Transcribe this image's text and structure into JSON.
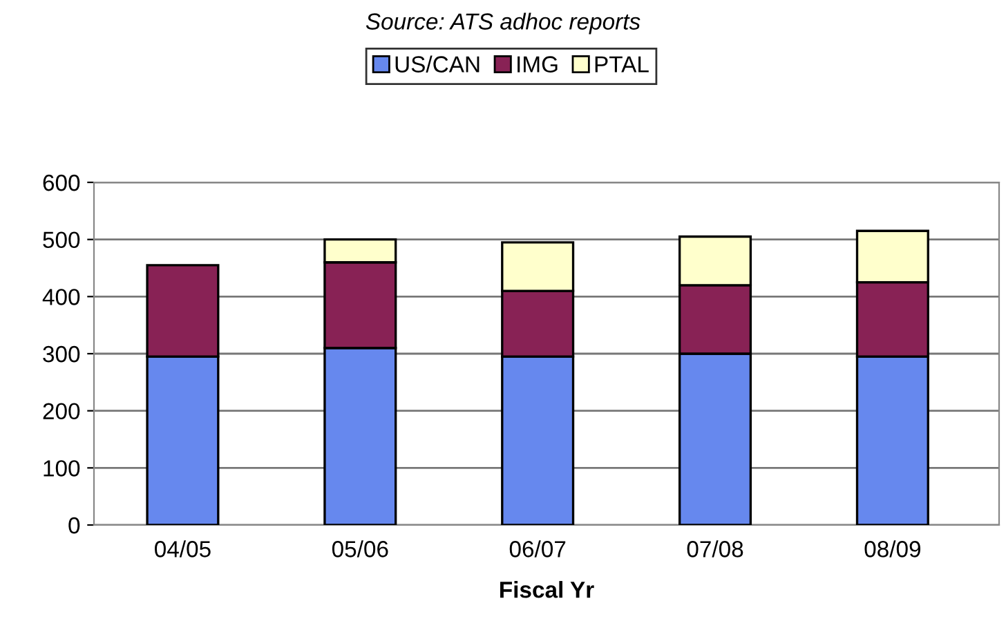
{
  "chart_data": {
    "type": "bar",
    "stacked": true,
    "xlabel": "Fiscal Yr",
    "annotations": [
      "Source: ATS adhoc reports"
    ],
    "categories": [
      "04/05",
      "05/06",
      "06/07",
      "07/08",
      "08/09"
    ],
    "series": [
      {
        "name": "US/CAN",
        "color": "#6688ee",
        "values": [
          295,
          310,
          295,
          300,
          295
        ]
      },
      {
        "name": "IMG",
        "color": "#882255",
        "values": [
          160,
          150,
          115,
          120,
          130
        ]
      },
      {
        "name": "PTAL",
        "color": "#ffffcc",
        "values": [
          null,
          40,
          85,
          85,
          90
        ]
      }
    ],
    "ylim": [
      0,
      600
    ],
    "yticks": [
      0,
      100,
      200,
      300,
      400,
      500,
      600
    ],
    "grid": "y",
    "legend": "top"
  }
}
